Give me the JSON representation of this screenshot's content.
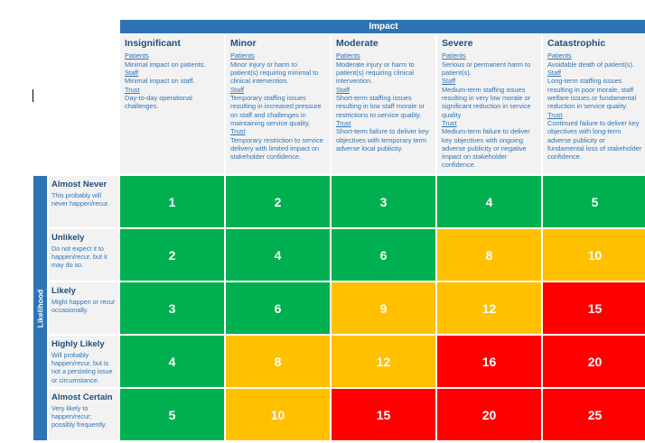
{
  "impact_heading": "Impact",
  "likelihood_heading": "Likelihood",
  "colors": {
    "header_blue": "#2e74b5",
    "low": "#00b050",
    "medium": "#ffc000",
    "high": "#ff0000"
  },
  "impact_levels": [
    {
      "name": "Insignificant",
      "patients_label": "Patients",
      "patients_text": "Minimal impact on patients.",
      "staff_label": "Staff",
      "staff_text": "Minimal impact on staff.",
      "trust_label": "Trust",
      "trust_text": "Day-to-day operational challenges."
    },
    {
      "name": "Minor",
      "patients_label": "Patients",
      "patients_text": "Minor injury or harm to patient(s) requiring minimal to clinical intervention.",
      "staff_label": "Staff",
      "staff_text": "Temporary staffing issues resulting in increased pressure on staff and challenges in maintaining service quality.",
      "trust_label": "Trust",
      "trust_text": "Temporary restriction to service delivery with limited impact on stakeholder confidence."
    },
    {
      "name": "Moderate",
      "patients_label": "Patients",
      "patients_text": "Moderate injury or harm to patient(s) requiring clinical intervention.",
      "staff_label": "Staff",
      "staff_text": "Short-term staffing issues resulting in low staff morale or restrictions to service quality.",
      "trust_label": "Trust",
      "trust_text": "Short-term failure to deliver key objectives with temporary term adverse local publicity."
    },
    {
      "name": "Severe",
      "patients_label": "Patients",
      "patients_text": "Serious or permanent harm to patient(s).",
      "staff_label": "Staff",
      "staff_text": "Medium-term staffing issues resulting in very low morale or significant reduction in service quality",
      "trust_label": "Trust",
      "trust_text": "Medium-term failure to deliver key objectives with ongoing adverse publicity or negative impact on stakeholder confidence."
    },
    {
      "name": "Catastrophic",
      "patients_label": "Patients",
      "patients_text": "Avoidable death of patient(s).",
      "staff_label": "Staff",
      "staff_text": "Long-term staffing issues resulting in poor morale, staff welfare issues or fundamental reduction in service quality.",
      "trust_label": "Trust",
      "trust_text": "Continued failure to deliver key objectives with long-term adverse publicity or fundamental loss of stakeholder confidence."
    }
  ],
  "likelihood_levels": [
    {
      "name": "Almost Never",
      "desc": "This probably will never happen/recur."
    },
    {
      "name": "Unlikely",
      "desc": "Do not expect it to happen/recur, but it may do so."
    },
    {
      "name": "Likely",
      "desc": "Might happen or recur occasionally."
    },
    {
      "name": "Highly Likely",
      "desc": "Will probably happen/recur, but is not a persisting issue or circumstance."
    },
    {
      "name": "Almost Certain",
      "desc": "Very likely to happen/recur; possibly frequently."
    }
  ],
  "scores": [
    [
      {
        "value": "1",
        "level": "green"
      },
      {
        "value": "2",
        "level": "green"
      },
      {
        "value": "3",
        "level": "green"
      },
      {
        "value": "4",
        "level": "green"
      },
      {
        "value": "5",
        "level": "green"
      }
    ],
    [
      {
        "value": "2",
        "level": "green"
      },
      {
        "value": "4",
        "level": "green"
      },
      {
        "value": "6",
        "level": "green"
      },
      {
        "value": "8",
        "level": "amber"
      },
      {
        "value": "10",
        "level": "amber"
      }
    ],
    [
      {
        "value": "3",
        "level": "green"
      },
      {
        "value": "6",
        "level": "green"
      },
      {
        "value": "9",
        "level": "amber"
      },
      {
        "value": "12",
        "level": "amber"
      },
      {
        "value": "15",
        "level": "red"
      }
    ],
    [
      {
        "value": "4",
        "level": "green"
      },
      {
        "value": "8",
        "level": "amber"
      },
      {
        "value": "12",
        "level": "amber"
      },
      {
        "value": "16",
        "level": "red"
      },
      {
        "value": "20",
        "level": "red"
      }
    ],
    [
      {
        "value": "5",
        "level": "green"
      },
      {
        "value": "10",
        "level": "amber"
      },
      {
        "value": "15",
        "level": "red"
      },
      {
        "value": "20",
        "level": "red"
      },
      {
        "value": "25",
        "level": "red"
      }
    ]
  ]
}
